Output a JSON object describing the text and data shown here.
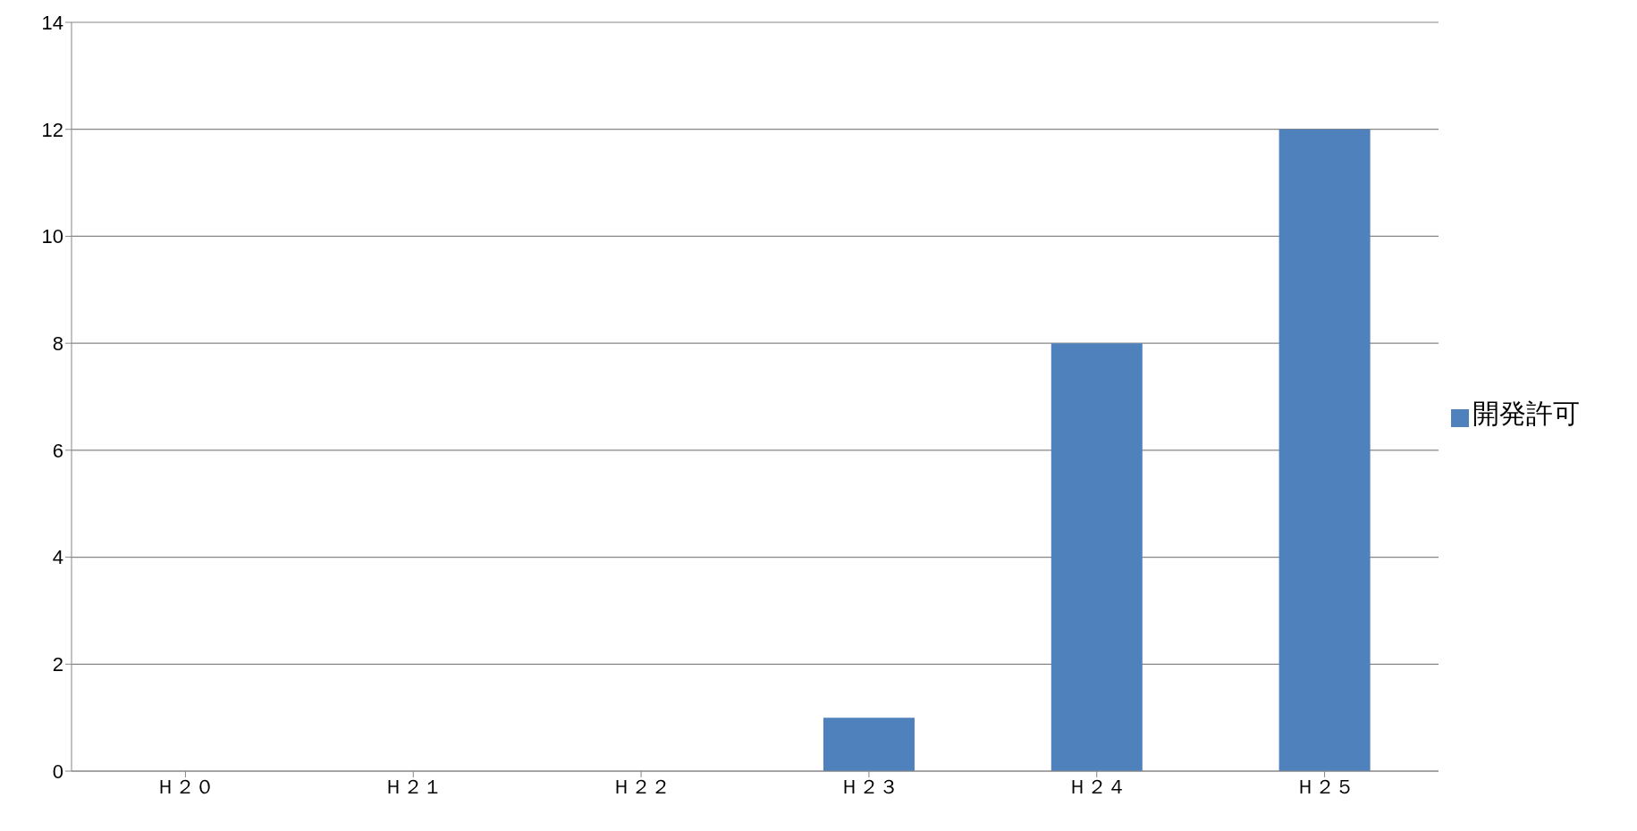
{
  "chart_data": {
    "type": "bar",
    "categories": [
      "Ｈ２０",
      "Ｈ２１",
      "Ｈ２２",
      "Ｈ２３",
      "Ｈ２４",
      "Ｈ２５"
    ],
    "series": [
      {
        "name": "開発許可",
        "color": "#4f81bd",
        "values": [
          0,
          0,
          0,
          1,
          8,
          12
        ]
      }
    ],
    "ylim": [
      0,
      14
    ],
    "yticks": [
      0,
      2,
      4,
      6,
      8,
      10,
      12,
      14
    ],
    "grid": "y",
    "legend": "right"
  }
}
